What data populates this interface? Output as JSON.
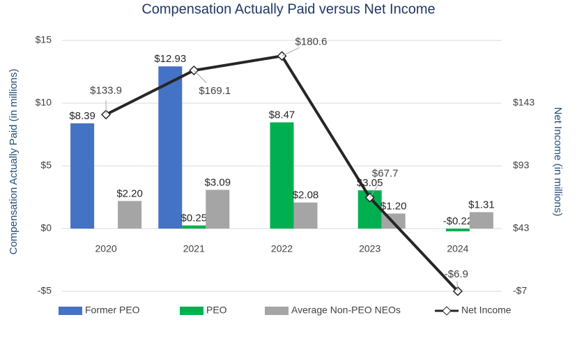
{
  "chart_data": {
    "type": "bar",
    "title": "Compensation Actually Paid versus Net Income",
    "y_label": "Compensation Actually Paid (in millions)",
    "y2_label": "Net Income (in millions)",
    "categories": [
      "2020",
      "2021",
      "2022",
      "2023",
      "2024"
    ],
    "series": [
      {
        "name": "Former PEO",
        "color": "#4472c4",
        "values": [
          8.39,
          12.93,
          null,
          null,
          null
        ],
        "value_labels": [
          "$8.39",
          "$12.93",
          null,
          null,
          null
        ]
      },
      {
        "name": "PEO",
        "color": "#00b050",
        "values": [
          null,
          0.25,
          8.47,
          3.05,
          -0.22
        ],
        "value_labels": [
          null,
          "$0.25",
          "$8.47",
          "$3.05",
          "-$0.22"
        ]
      },
      {
        "name": "Average Non-PEO NEOs",
        "color": "#a5a5a5",
        "values": [
          2.2,
          3.09,
          2.08,
          1.2,
          1.31
        ],
        "value_labels": [
          "$2.20",
          "$3.09",
          "$2.08",
          "$1.20",
          "$1.31"
        ]
      },
      {
        "name": "Net Income",
        "type": "line",
        "axis": "y2",
        "color": "#262626",
        "values": [
          133.9,
          169.1,
          180.6,
          67.7,
          -6.9
        ],
        "value_labels": [
          "$133.9",
          "$169.1",
          "$180.6",
          "$67.7",
          "-$6.9"
        ]
      }
    ],
    "ylim": [
      -5,
      15
    ],
    "yticks": [
      {
        "value": -5,
        "label": "-$5"
      },
      {
        "value": 0,
        "label": "$0"
      },
      {
        "value": 5,
        "label": "$5"
      },
      {
        "value": 10,
        "label": "$10"
      },
      {
        "value": 15,
        "label": "$15"
      }
    ],
    "y2lim": [
      -7,
      193
    ],
    "y2ticks": [
      {
        "value": -7,
        "label": "-$7"
      },
      {
        "value": 43,
        "label": "$43"
      },
      {
        "value": 93,
        "label": "$93"
      },
      {
        "value": 143,
        "label": "$143"
      }
    ],
    "grid": true,
    "legend": "bottom"
  }
}
